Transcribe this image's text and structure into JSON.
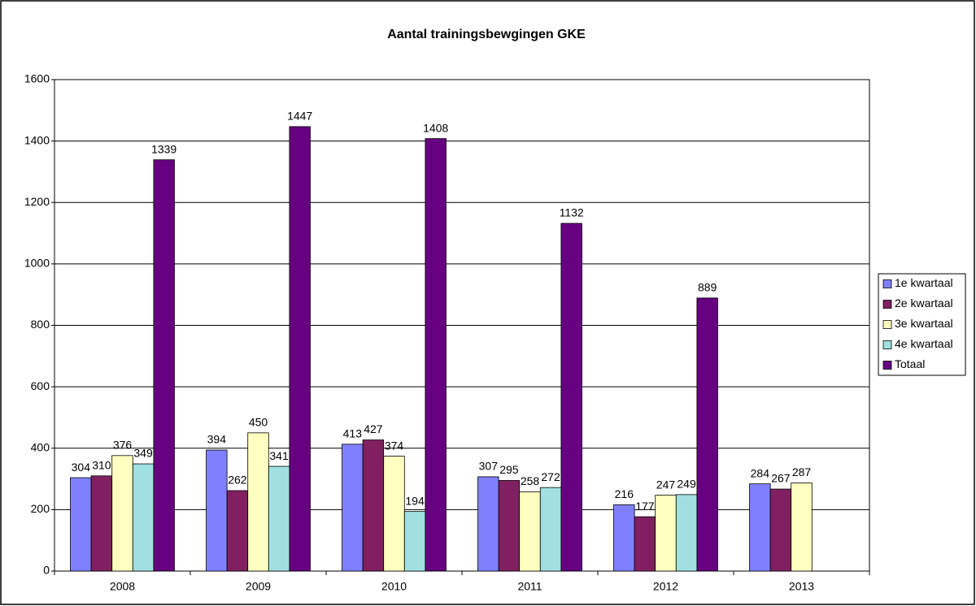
{
  "chart_data": {
    "type": "bar",
    "title": "Aantal trainingsbewgingen GKE",
    "categories": [
      "2008",
      "2009",
      "2010",
      "2011",
      "2012",
      "2013"
    ],
    "series": [
      {
        "name": "1e kwartaal",
        "color": "#8080ff",
        "values": [
          304,
          394,
          413,
          307,
          216,
          284
        ]
      },
      {
        "name": "2e kwartaal",
        "color": "#802060",
        "values": [
          310,
          262,
          427,
          295,
          177,
          267
        ]
      },
      {
        "name": "3e kwartaal",
        "color": "#ffffc0",
        "values": [
          376,
          450,
          374,
          258,
          247,
          287
        ]
      },
      {
        "name": "4e kwartaal",
        "color": "#a0e0e0",
        "values": [
          349,
          341,
          194,
          272,
          249,
          null
        ]
      },
      {
        "name": "Totaal",
        "color": "#660080",
        "values": [
          1339,
          1447,
          1408,
          1132,
          889,
          null
        ]
      }
    ],
    "ylim": [
      0,
      1600
    ],
    "yticks": [
      0,
      200,
      400,
      600,
      800,
      1000,
      1200,
      1400,
      1600
    ],
    "grid": true,
    "legend": "right"
  }
}
